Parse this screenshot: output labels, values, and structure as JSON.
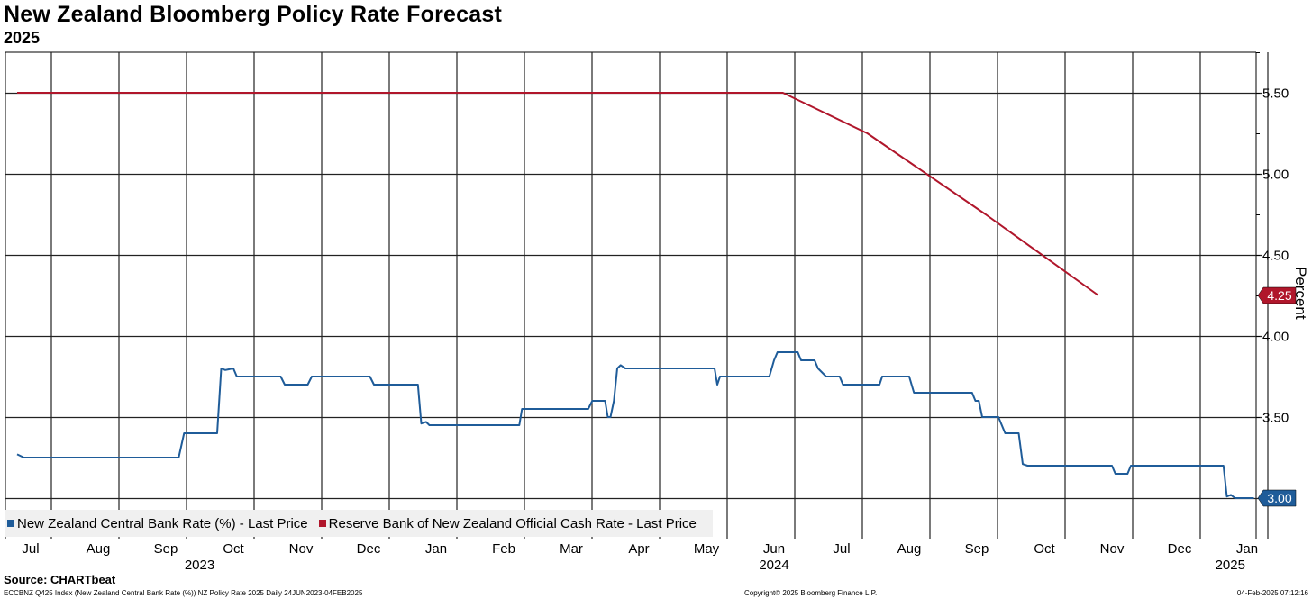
{
  "title": "New Zealand Bloomberg Policy Rate Forecast",
  "subtitle": "2025",
  "source": "Source: CHARTbeat",
  "footer": {
    "left": "ECCBNZ Q425 Index (New Zealand Central Bank Rate (%)) NZ Policy Rate 2025  Daily 24JUN2023-04FEB2025",
    "mid": "Copyright© 2025 Bloomberg Finance L.P.",
    "right": "04-Feb-2025 07:12:16"
  },
  "colors": {
    "blue": "#1f5c99",
    "red": "#b0162b"
  },
  "chart_data": {
    "type": "line",
    "title": "New Zealand Bloomberg Policy Rate Forecast",
    "subtitle": "2025",
    "ylabel": "Percent",
    "ylim": [
      2.75,
      5.75
    ],
    "yticks": [
      3.5,
      4.0,
      4.5,
      5.0,
      5.5
    ],
    "ytick_labels": [
      "3.50",
      "4.00",
      "4.50",
      "5.00",
      "5.50"
    ],
    "xlim": [
      0,
      19.2
    ],
    "xtick_labels": [
      "Jul",
      "Aug",
      "Sep",
      "Oct",
      "Nov",
      "Dec",
      "Jan",
      "Feb",
      "Mar",
      "Apr",
      "May",
      "Jun",
      "Jul",
      "Aug",
      "Sep",
      "Oct",
      "Nov",
      "Dec",
      "Jan"
    ],
    "year_labels": [
      {
        "label": "2023",
        "x": 2.5
      },
      {
        "label": "2024",
        "x": 11.0
      },
      {
        "label": "2025",
        "x": 17.75
      }
    ],
    "year_dividers": [
      5.2,
      17.2
    ],
    "legend_position": "bottom-left",
    "series": [
      {
        "name": "New Zealand Central Bank Rate (%) - Last Price",
        "color_key": "blue",
        "last_value": "3.00",
        "points": [
          [
            0.0,
            3.27
          ],
          [
            0.1,
            3.25
          ],
          [
            2.39,
            3.25
          ],
          [
            2.47,
            3.4
          ],
          [
            2.96,
            3.4
          ],
          [
            3.02,
            3.8
          ],
          [
            3.08,
            3.79
          ],
          [
            3.2,
            3.8
          ],
          [
            3.25,
            3.75
          ],
          [
            3.9,
            3.75
          ],
          [
            3.96,
            3.7
          ],
          [
            4.3,
            3.7
          ],
          [
            4.36,
            3.75
          ],
          [
            5.22,
            3.75
          ],
          [
            5.28,
            3.7
          ],
          [
            5.93,
            3.7
          ],
          [
            5.98,
            3.46
          ],
          [
            6.05,
            3.47
          ],
          [
            6.1,
            3.45
          ],
          [
            7.43,
            3.45
          ],
          [
            7.47,
            3.55
          ],
          [
            8.45,
            3.55
          ],
          [
            8.51,
            3.6
          ],
          [
            8.7,
            3.6
          ],
          [
            8.74,
            3.5
          ],
          [
            8.78,
            3.5
          ],
          [
            8.83,
            3.6
          ],
          [
            8.88,
            3.8
          ],
          [
            8.93,
            3.82
          ],
          [
            9.0,
            3.8
          ],
          [
            10.32,
            3.8
          ],
          [
            10.36,
            3.7
          ],
          [
            10.4,
            3.75
          ],
          [
            11.13,
            3.75
          ],
          [
            11.2,
            3.85
          ],
          [
            11.25,
            3.9
          ],
          [
            11.55,
            3.9
          ],
          [
            11.6,
            3.85
          ],
          [
            11.8,
            3.85
          ],
          [
            11.85,
            3.8
          ],
          [
            11.97,
            3.75
          ],
          [
            12.17,
            3.75
          ],
          [
            12.22,
            3.7
          ],
          [
            12.76,
            3.7
          ],
          [
            12.8,
            3.75
          ],
          [
            13.2,
            3.75
          ],
          [
            13.27,
            3.65
          ],
          [
            14.13,
            3.65
          ],
          [
            14.18,
            3.6
          ],
          [
            14.23,
            3.6
          ],
          [
            14.28,
            3.5
          ],
          [
            14.52,
            3.5
          ],
          [
            14.62,
            3.4
          ],
          [
            14.82,
            3.4
          ],
          [
            14.88,
            3.21
          ],
          [
            14.95,
            3.2
          ],
          [
            16.2,
            3.2
          ],
          [
            16.25,
            3.15
          ],
          [
            16.43,
            3.15
          ],
          [
            16.48,
            3.2
          ],
          [
            17.85,
            3.2
          ],
          [
            17.9,
            3.01
          ],
          [
            17.96,
            3.02
          ],
          [
            18.02,
            3.0
          ],
          [
            18.3,
            3.0
          ]
        ]
      },
      {
        "name": "Reserve Bank of New Zealand Official Cash Rate - Last Price",
        "color_key": "red",
        "last_value": "4.25",
        "points": [
          [
            0.0,
            5.5
          ],
          [
            11.33,
            5.5
          ],
          [
            12.58,
            5.25
          ],
          [
            14.33,
            4.75
          ],
          [
            16.0,
            4.25
          ]
        ]
      }
    ]
  }
}
